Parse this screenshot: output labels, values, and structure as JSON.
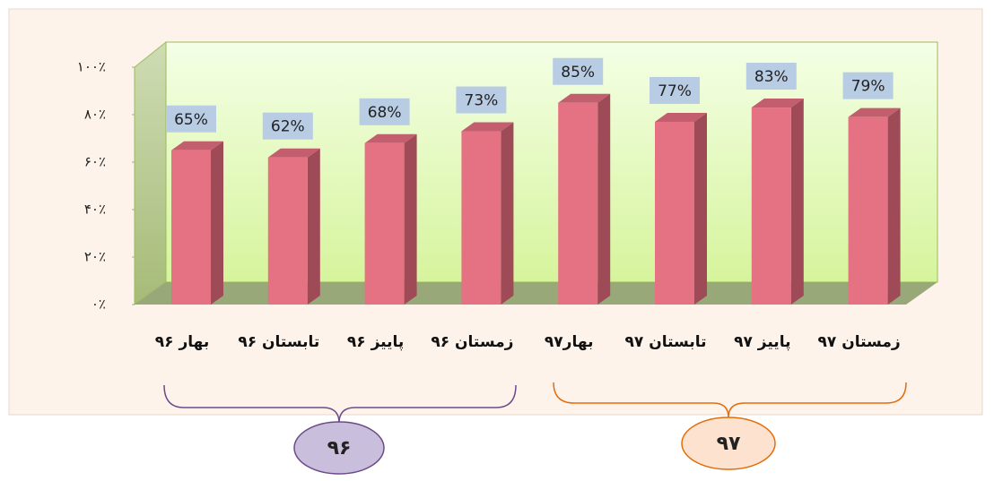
{
  "chart_data": {
    "type": "bar3d",
    "categories": [
      "بهار ۹۶",
      "تابستان ۹۶",
      "پاییز ۹۶",
      "زمستان ۹۶",
      "بهار۹۷",
      "تابستان ۹۷",
      "پاییز ۹۷",
      "زمستان ۹۷"
    ],
    "values": [
      65,
      62,
      68,
      73,
      85,
      77,
      83,
      79
    ],
    "value_labels": [
      "65%",
      "62%",
      "68%",
      "73%",
      "85%",
      "77%",
      "83%",
      "79%"
    ],
    "color": "#e57283",
    "ylim": [
      0,
      100
    ],
    "yticks": [
      {
        "value": 0,
        "label": "۰٪"
      },
      {
        "value": 20,
        "label": "۲۰٪"
      },
      {
        "value": 40,
        "label": "۴۰٪"
      },
      {
        "value": 60,
        "label": "۶۰٪"
      },
      {
        "value": 80,
        "label": "۸۰٪"
      },
      {
        "value": 100,
        "label": "۱۰۰٪"
      }
    ],
    "group_labels": [
      "۹۶",
      "۹۷"
    ]
  }
}
